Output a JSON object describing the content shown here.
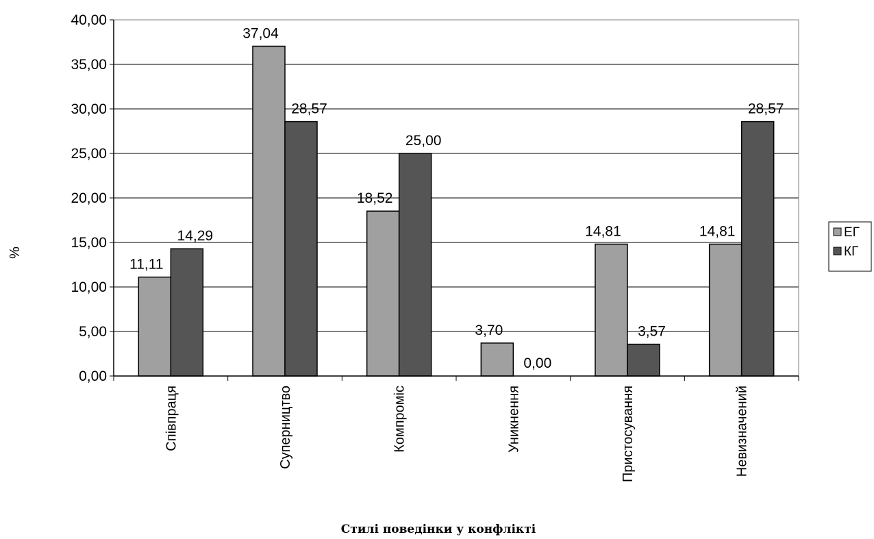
{
  "chart_data": {
    "type": "bar",
    "title": "",
    "xlabel": "Стилі поведінки у конфлікті",
    "ylabel": "%",
    "ylim": [
      0,
      40
    ],
    "yticks": [
      "0,00",
      "5,00",
      "10,00",
      "15,00",
      "20,00",
      "25,00",
      "30,00",
      "35,00",
      "40,00"
    ],
    "categories": [
      "Співпраця",
      "Суперництво",
      "Компроміс",
      "Уникнення",
      "Пристосування",
      "Невизначений"
    ],
    "series": [
      {
        "name": "ЕГ",
        "color": "#a0a0a0",
        "values": [
          11.11,
          37.04,
          18.52,
          3.7,
          14.81,
          14.81
        ],
        "labels": [
          "11,11",
          "37,04",
          "18,52",
          "3,70",
          "14,81",
          "14,81"
        ]
      },
      {
        "name": "КГ",
        "color": "#555555",
        "values": [
          14.29,
          28.57,
          25.0,
          0.0,
          3.57,
          28.57
        ],
        "labels": [
          "14,29",
          "28,57",
          "25,00",
          "0,00",
          "3,57",
          "28,57"
        ]
      }
    ],
    "grid": true,
    "legend": "right"
  }
}
